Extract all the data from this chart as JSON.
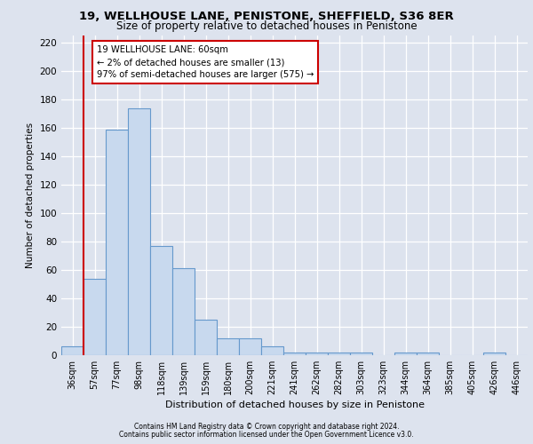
{
  "title1": "19, WELLHOUSE LANE, PENISTONE, SHEFFIELD, S36 8ER",
  "title2": "Size of property relative to detached houses in Penistone",
  "xlabel": "Distribution of detached houses by size in Penistone",
  "ylabel": "Number of detached properties",
  "bar_labels": [
    "36sqm",
    "57sqm",
    "77sqm",
    "98sqm",
    "118sqm",
    "139sqm",
    "159sqm",
    "180sqm",
    "200sqm",
    "221sqm",
    "241sqm",
    "262sqm",
    "282sqm",
    "303sqm",
    "323sqm",
    "344sqm",
    "364sqm",
    "385sqm",
    "405sqm",
    "426sqm",
    "446sqm"
  ],
  "bar_values": [
    6,
    54,
    159,
    174,
    77,
    61,
    25,
    12,
    12,
    6,
    2,
    2,
    2,
    2,
    0,
    2,
    2,
    0,
    0,
    2,
    0
  ],
  "bar_color": "#c8d9ee",
  "bar_edge_color": "#6699cc",
  "annotation_text": "19 WELLHOUSE LANE: 60sqm\n← 2% of detached houses are smaller (13)\n97% of semi-detached houses are larger (575) →",
  "ylim": [
    0,
    225
  ],
  "yticks": [
    0,
    20,
    40,
    60,
    80,
    100,
    120,
    140,
    160,
    180,
    200,
    220
  ],
  "background_color": "#dde3ee",
  "plot_bg_color": "#dde3ee",
  "red_line_color": "#cc0000",
  "annotation_box_color": "#ffffff",
  "annotation_box_edge": "#cc0000",
  "footer1": "Contains HM Land Registry data © Crown copyright and database right 2024.",
  "footer2": "Contains public sector information licensed under the Open Government Licence v3.0.",
  "red_line_x": 1,
  "figwidth": 6.0,
  "figheight": 5.0
}
